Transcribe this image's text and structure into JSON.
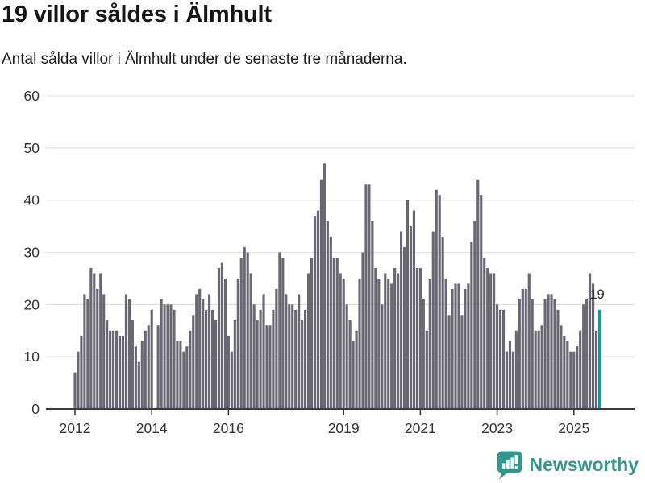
{
  "header": {
    "title": "19 villor såldes i Älmhult",
    "subtitle": "Antal sålda villor i Älmhult under de senaste tre månaderna."
  },
  "chart_data": {
    "type": "bar",
    "title": "19 villor såldes i Älmhult",
    "subtitle": "Antal sålda villor i Älmhult under de senaste tre månaderna.",
    "frequency": "monthly",
    "start_month": "2012-01",
    "end_month": "2025-09",
    "ylim": [
      0,
      60
    ],
    "grid": "horizontal",
    "legend_position": "none",
    "y_ticks": [
      0,
      10,
      20,
      30,
      40,
      50,
      60
    ],
    "x_tick_years": [
      "2012",
      "2014",
      "2016",
      "2019",
      "2021",
      "2023",
      "2025"
    ],
    "values": [
      7,
      11,
      14,
      22,
      21,
      27,
      26,
      23,
      26,
      22,
      17,
      15,
      15,
      15,
      14,
      14,
      22,
      21,
      17,
      12,
      9,
      13,
      15,
      16,
      19,
      0,
      16,
      21,
      20,
      20,
      20,
      19,
      13,
      13,
      11,
      12,
      15,
      18,
      22,
      23,
      21,
      19,
      22,
      19,
      17,
      27,
      28,
      25,
      14,
      11,
      17,
      25,
      29,
      31,
      30,
      26,
      20,
      17,
      19,
      22,
      16,
      16,
      19,
      23,
      30,
      29,
      22,
      20,
      20,
      19,
      22,
      17,
      19,
      26,
      29,
      37,
      38,
      44,
      47,
      36,
      33,
      29,
      29,
      26,
      25,
      20,
      17,
      13,
      15,
      25,
      30,
      43,
      43,
      36,
      27,
      25,
      20,
      26,
      25,
      24,
      27,
      26,
      34,
      31,
      40,
      35,
      38,
      27,
      27,
      21,
      15,
      25,
      34,
      42,
      41,
      33,
      25,
      18,
      23,
      24,
      24,
      18,
      23,
      24,
      32,
      36,
      44,
      41,
      29,
      27,
      26,
      26,
      20,
      19,
      19,
      11,
      13,
      11,
      15,
      21,
      23,
      23,
      26,
      21,
      15,
      15,
      16,
      21,
      22,
      22,
      21,
      19,
      16,
      14,
      13,
      11,
      11,
      12,
      15,
      20,
      21,
      26,
      24,
      15,
      19
    ],
    "highlight_last": true,
    "highlight_value": 19,
    "highlight_label": "19",
    "bar_color": "#696772",
    "highlight_color": "#00a1a6",
    "axis_color": "#3b3b3b",
    "gridline_color": "#e3e3e3",
    "tick_label_color": "#333333",
    "annotation_color": "#2e2e2e"
  },
  "footer": {
    "brand": "Newsworthy",
    "logo_color": "#34978d",
    "logo_icon": "speech-bubble-bar-chart-exclamation"
  }
}
